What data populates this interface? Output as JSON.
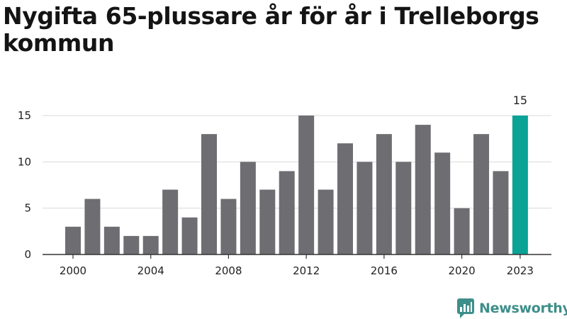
{
  "title": "Nygifta 65-plussare år för år i Trelleborgs kommun",
  "brand": {
    "name": "Newsworthy",
    "icon": "bar-chart-bubble-icon",
    "color": "#3d8f8a"
  },
  "colors": {
    "bar": "#6e6d72",
    "highlight": "#0aa396",
    "grid": "#d9d9d9",
    "axis": "#333333"
  },
  "chart_data": {
    "type": "bar",
    "title": "Nygifta 65-plussare år för år i Trelleborgs kommun",
    "xlabel": "",
    "ylabel": "",
    "categories": [
      "2000",
      "2001",
      "2002",
      "2003",
      "2004",
      "2005",
      "2006",
      "2007",
      "2008",
      "2009",
      "2010",
      "2011",
      "2012",
      "2013",
      "2014",
      "2015",
      "2016",
      "2017",
      "2018",
      "2019",
      "2020",
      "2021",
      "2022",
      "2023"
    ],
    "values": [
      3,
      6,
      3,
      2,
      2,
      7,
      4,
      13,
      6,
      10,
      7,
      9,
      15,
      7,
      12,
      10,
      13,
      10,
      14,
      11,
      5,
      13,
      9,
      15
    ],
    "ylim": [
      0,
      15
    ],
    "yticks": [
      0,
      5,
      10,
      15
    ],
    "xtick_labels": [
      "2000",
      "2004",
      "2008",
      "2012",
      "2016",
      "2020",
      "2023"
    ],
    "highlight": {
      "category": "2023",
      "label": "15"
    },
    "grid": true
  }
}
